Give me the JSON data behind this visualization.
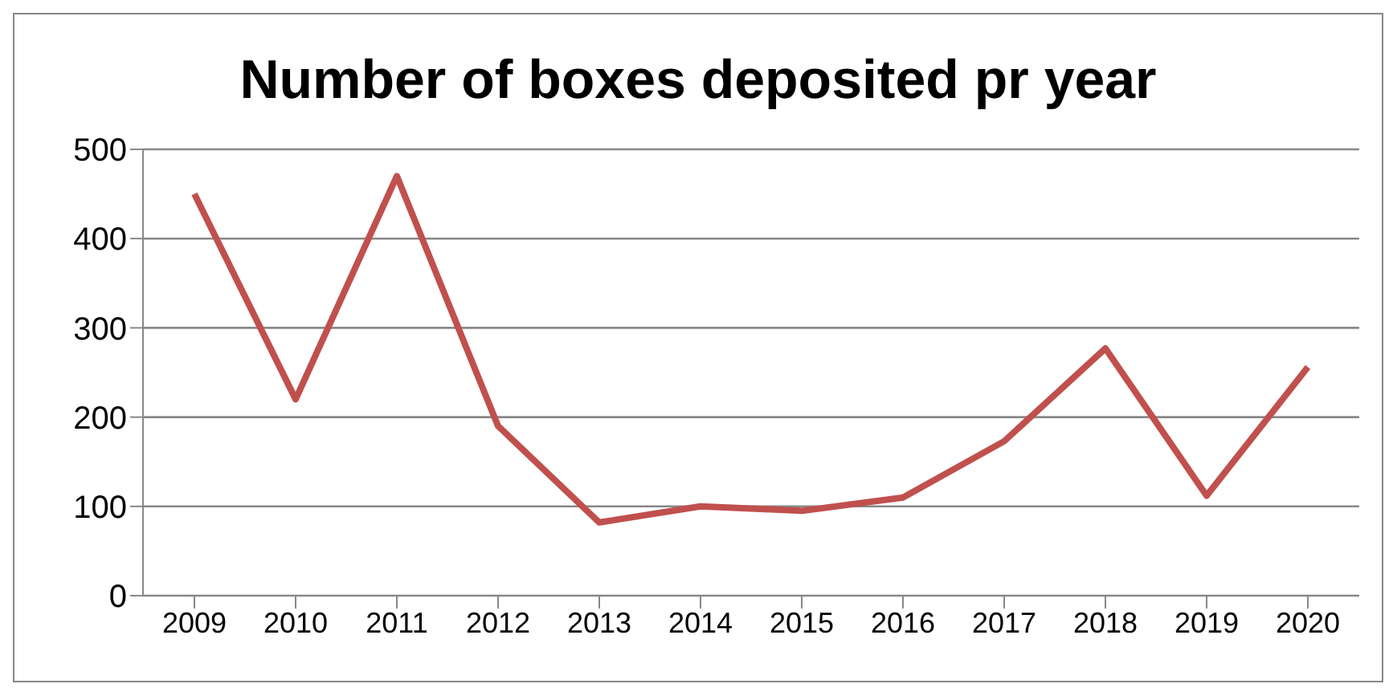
{
  "chart_data": {
    "type": "line",
    "title": "Number of boxes deposited pr year",
    "categories": [
      "2009",
      "2010",
      "2011",
      "2012",
      "2013",
      "2014",
      "2015",
      "2016",
      "2017",
      "2018",
      "2019",
      "2020"
    ],
    "series": [
      {
        "color": "#c0504d",
        "values": [
          450,
          220,
          470,
          190,
          82,
          100,
          95,
          110,
          173,
          277,
          112,
          256
        ]
      }
    ],
    "ylim": [
      0,
      500
    ],
    "yticks": [
      0,
      100,
      200,
      300,
      400,
      500
    ],
    "grid": "y",
    "marker": "none",
    "line_style": "solid"
  }
}
